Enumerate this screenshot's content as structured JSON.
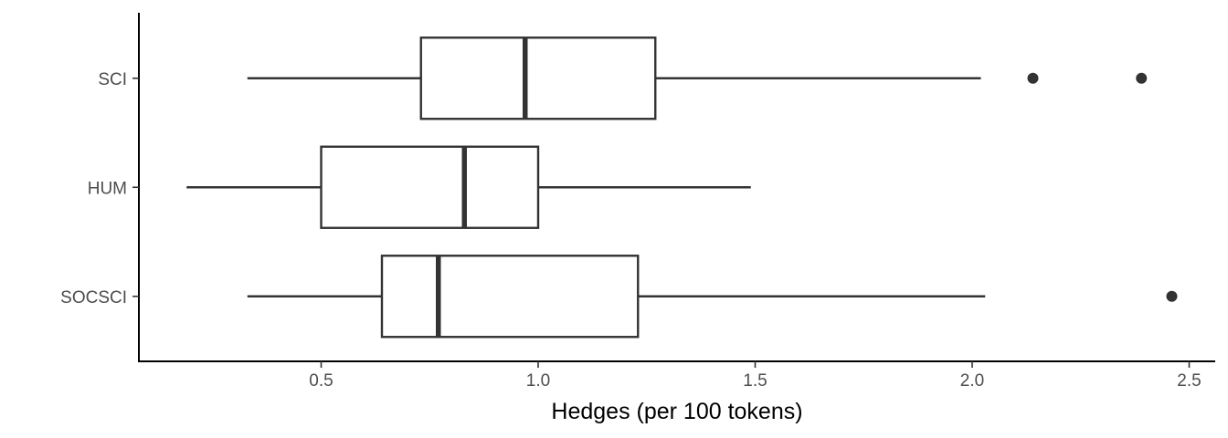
{
  "chart_data": {
    "type": "boxplot",
    "orientation": "horizontal",
    "title": "",
    "xlabel": "Hedges (per 100 tokens)",
    "ylabel": "",
    "xlim": [
      0.08,
      2.56
    ],
    "x_ticks": [
      0.5,
      1.0,
      1.5,
      2.0,
      2.5
    ],
    "x_tick_labels": [
      "0.5",
      "1.0",
      "1.5",
      "2.0",
      "2.5"
    ],
    "grid": false,
    "legend": "none",
    "categories": [
      "SCI",
      "HUM",
      "SOCSCI"
    ],
    "boxes": [
      {
        "category": "SCI",
        "whisker_low": 0.33,
        "q1": 0.73,
        "median": 0.97,
        "q3": 1.27,
        "whisker_high": 2.02,
        "outliers": [
          2.14,
          2.39
        ]
      },
      {
        "category": "HUM",
        "whisker_low": 0.19,
        "q1": 0.5,
        "median": 0.83,
        "q3": 1.0,
        "whisker_high": 1.49,
        "outliers": []
      },
      {
        "category": "SOCSCI",
        "whisker_low": 0.33,
        "q1": 0.64,
        "median": 0.77,
        "q3": 1.23,
        "whisker_high": 2.03,
        "outliers": [
          2.46
        ]
      }
    ]
  }
}
